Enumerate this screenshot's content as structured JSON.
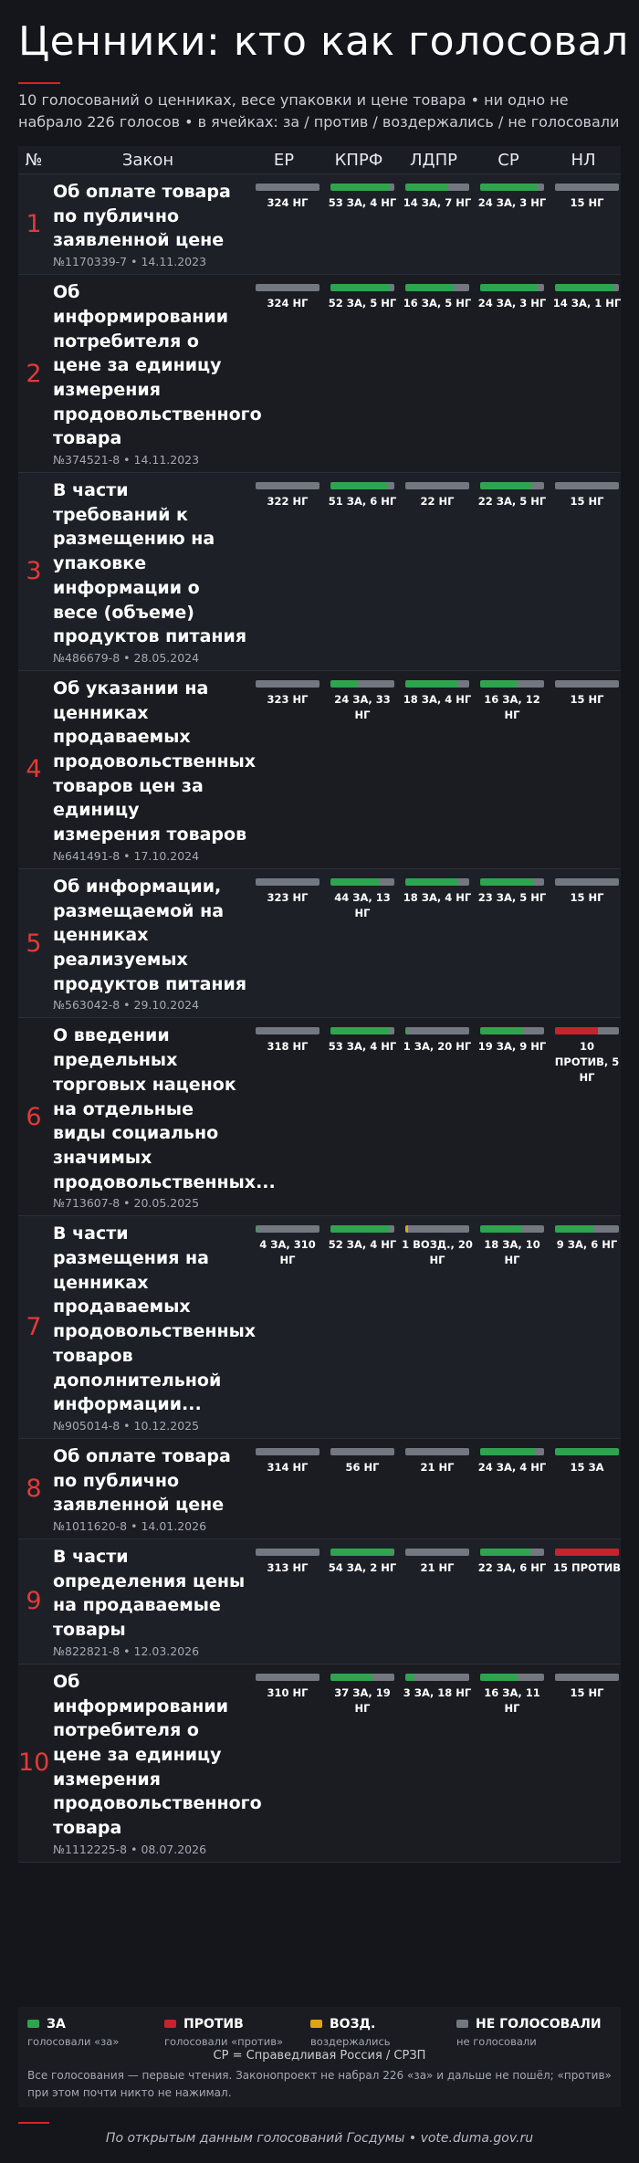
{
  "header": {
    "title": "Ценники: кто как голосовал",
    "subtitle": "10 голосований о ценниках, весе упаковки и цене товара • ни одно не набрало 226 голосов • в ячейках: за / против / воздержались / не голосовали"
  },
  "table": {
    "columns": [
      "№",
      "Закон",
      "ЕР",
      "КПРФ",
      "ЛДПР",
      "СР",
      "НЛ"
    ],
    "rows": [
      {
        "num": "1",
        "title": "Об оплате товара по публично заявленной цене",
        "meta": "№1170339-7 • 14.11.2023",
        "cells": [
          {
            "label": "324 НГ",
            "votes": {
              "ng": 324
            }
          },
          {
            "label": "53 ЗА, 4 НГ",
            "votes": {
              "za": 53,
              "ng": 4
            }
          },
          {
            "label": "14 ЗА, 7 НГ",
            "votes": {
              "za": 14,
              "ng": 7
            }
          },
          {
            "label": "24 ЗА, 3 НГ",
            "votes": {
              "za": 24,
              "ng": 3
            }
          },
          {
            "label": "15 НГ",
            "votes": {
              "ng": 15
            }
          }
        ]
      },
      {
        "num": "2",
        "title": "Об информировании потребителя о цене за единицу измерения продовольственного товара",
        "meta": "№374521-8 • 14.11.2023",
        "cells": [
          {
            "label": "324 НГ",
            "votes": {
              "ng": 324
            }
          },
          {
            "label": "52 ЗА, 5 НГ",
            "votes": {
              "za": 52,
              "ng": 5
            }
          },
          {
            "label": "16 ЗА, 5 НГ",
            "votes": {
              "za": 16,
              "ng": 5
            }
          },
          {
            "label": "24 ЗА, 3 НГ",
            "votes": {
              "za": 24,
              "ng": 3
            }
          },
          {
            "label": "14 ЗА, 1 НГ",
            "votes": {
              "za": 14,
              "ng": 1
            }
          }
        ]
      },
      {
        "num": "3",
        "title": "В части требований к размещению на упаковке информации о весе (объеме) продуктов питания",
        "meta": "№486679-8 • 28.05.2024",
        "cells": [
          {
            "label": "322 НГ",
            "votes": {
              "ng": 322
            }
          },
          {
            "label": "51 ЗА, 6 НГ",
            "votes": {
              "za": 51,
              "ng": 6
            }
          },
          {
            "label": "22 НГ",
            "votes": {
              "ng": 22
            }
          },
          {
            "label": "22 ЗА, 5 НГ",
            "votes": {
              "za": 22,
              "ng": 5
            }
          },
          {
            "label": "15 НГ",
            "votes": {
              "ng": 15
            }
          }
        ]
      },
      {
        "num": "4",
        "title": "Об указании на ценниках продаваемых продовольственных товаров цен за единицу измерения товаров",
        "meta": "№641491-8 • 17.10.2024",
        "cells": [
          {
            "label": "323 НГ",
            "votes": {
              "ng": 323
            }
          },
          {
            "label": "24 ЗА, 33 НГ",
            "votes": {
              "za": 24,
              "ng": 33
            }
          },
          {
            "label": "18 ЗА, 4 НГ",
            "votes": {
              "za": 18,
              "ng": 4
            }
          },
          {
            "label": "16 ЗА, 12 НГ",
            "votes": {
              "za": 16,
              "ng": 12
            }
          },
          {
            "label": "15 НГ",
            "votes": {
              "ng": 15
            }
          }
        ]
      },
      {
        "num": "5",
        "title": "Об информации, размещаемой на ценниках реализуемых продуктов питания",
        "meta": "№563042-8 • 29.10.2024",
        "cells": [
          {
            "label": "323 НГ",
            "votes": {
              "ng": 323
            }
          },
          {
            "label": "44 ЗА, 13 НГ",
            "votes": {
              "za": 44,
              "ng": 13
            }
          },
          {
            "label": "18 ЗА, 4 НГ",
            "votes": {
              "za": 18,
              "ng": 4
            }
          },
          {
            "label": "23 ЗА, 5 НГ",
            "votes": {
              "za": 23,
              "ng": 5
            }
          },
          {
            "label": "15 НГ",
            "votes": {
              "ng": 15
            }
          }
        ]
      },
      {
        "num": "6",
        "title": "О введении предельных торговых наценок на отдельные виды социально значимых продовольственных...",
        "meta": "№713607-8 • 20.05.2025",
        "cells": [
          {
            "label": "318 НГ",
            "votes": {
              "ng": 318
            }
          },
          {
            "label": "53 ЗА, 4 НГ",
            "votes": {
              "za": 53,
              "ng": 4
            }
          },
          {
            "label": "1 ЗА, 20 НГ",
            "votes": {
              "za": 1,
              "ng": 20
            }
          },
          {
            "label": "19 ЗА, 9 НГ",
            "votes": {
              "za": 19,
              "ng": 9
            }
          },
          {
            "label": "10 ПРОТИВ, 5 НГ",
            "votes": {
              "protiv": 10,
              "ng": 5
            }
          }
        ]
      },
      {
        "num": "7",
        "title": "В части размещения на ценниках продаваемых продовольственных товаров дополнительной информации...",
        "meta": "№905014-8 • 10.12.2025",
        "cells": [
          {
            "label": "4 ЗА, 310 НГ",
            "votes": {
              "za": 4,
              "ng": 310
            }
          },
          {
            "label": "52 ЗА, 4 НГ",
            "votes": {
              "za": 52,
              "ng": 4
            }
          },
          {
            "label": "1 ВОЗД., 20 НГ",
            "votes": {
              "vozd": 1,
              "ng": 20
            }
          },
          {
            "label": "18 ЗА, 10 НГ",
            "votes": {
              "za": 18,
              "ng": 10
            }
          },
          {
            "label": "9 ЗА, 6 НГ",
            "votes": {
              "za": 9,
              "ng": 6
            }
          }
        ]
      },
      {
        "num": "8",
        "title": "Об оплате товара по публично заявленной цене",
        "meta": "№1011620-8 • 14.01.2026",
        "cells": [
          {
            "label": "314 НГ",
            "votes": {
              "ng": 314
            }
          },
          {
            "label": "56 НГ",
            "votes": {
              "ng": 56
            }
          },
          {
            "label": "21 НГ",
            "votes": {
              "ng": 21
            }
          },
          {
            "label": "24 ЗА, 4 НГ",
            "votes": {
              "za": 24,
              "ng": 4
            }
          },
          {
            "label": "15 ЗА",
            "votes": {
              "za": 15
            }
          }
        ]
      },
      {
        "num": "9",
        "title": "В части определения цены на продаваемые товары",
        "meta": "№822821-8 • 12.03.2026",
        "cells": [
          {
            "label": "313 НГ",
            "votes": {
              "ng": 313
            }
          },
          {
            "label": "54 ЗА, 2 НГ",
            "votes": {
              "za": 54,
              "ng": 2
            }
          },
          {
            "label": "21 НГ",
            "votes": {
              "ng": 21
            }
          },
          {
            "label": "22 ЗА, 6 НГ",
            "votes": {
              "za": 22,
              "ng": 6
            }
          },
          {
            "label": "15 ПРОТИВ",
            "votes": {
              "protiv": 15
            }
          }
        ]
      },
      {
        "num": "10",
        "title": "Об информировании потребителя о цене за единицу измерения продовольственного товара",
        "meta": "№1112225-8 • 08.07.2026",
        "cells": [
          {
            "label": "310 НГ",
            "votes": {
              "ng": 310
            }
          },
          {
            "label": "37 ЗА, 19 НГ",
            "votes": {
              "za": 37,
              "ng": 19
            }
          },
          {
            "label": "3 ЗА, 18 НГ",
            "votes": {
              "za": 3,
              "ng": 18
            }
          },
          {
            "label": "16 ЗА, 11 НГ",
            "votes": {
              "za": 16,
              "ng": 11
            }
          },
          {
            "label": "15 НГ",
            "votes": {
              "ng": 15
            }
          }
        ]
      }
    ]
  },
  "legend": {
    "za": {
      "label": "ЗА",
      "desc": "голосовали «за»",
      "color": "#2ea44f"
    },
    "protiv": {
      "label": "ПРОТИВ",
      "desc": "голосовали «против»",
      "color": "#c8232c"
    },
    "vozd": {
      "label": "ВОЗД.",
      "desc": "воздержались",
      "color": "#e3a21a"
    },
    "ng": {
      "label": "НЕ ГОЛОСОВАЛИ",
      "desc": "не голосовали",
      "color": "#737880"
    }
  },
  "notes": {
    "abbr": "СР = Справедливая Россия / СРЗП",
    "footnote": "Все голосования — первые чтения. Законопроект не набрал 226 «за» и дальше не пошёл; «против» при этом почти никто не нажимал."
  },
  "footer": {
    "source": "По открытым данным голосований Госдумы • vote.duma.gov.ru"
  }
}
